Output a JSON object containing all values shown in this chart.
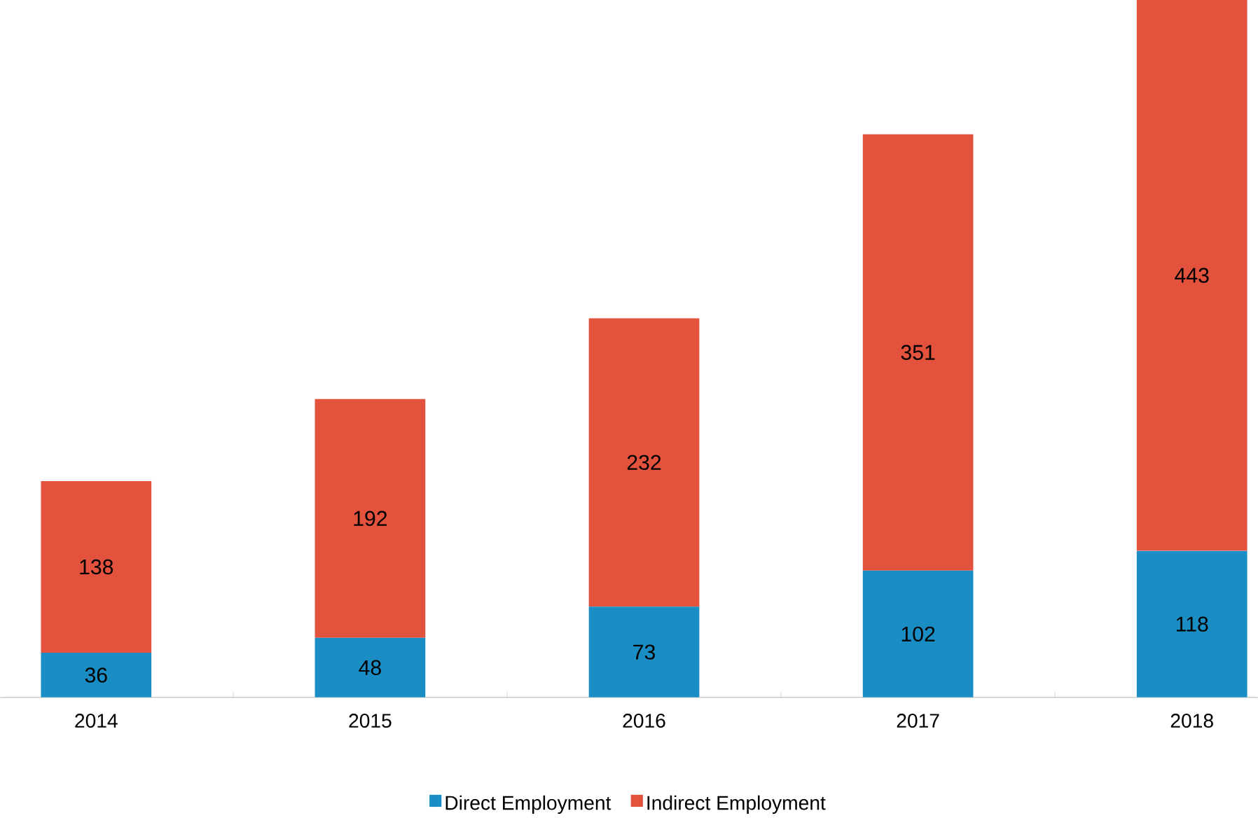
{
  "chart_data": {
    "type": "bar",
    "stacked": true,
    "categories": [
      "2014",
      "2015",
      "2016",
      "2017",
      "2018"
    ],
    "series": [
      {
        "name": "Direct Employment",
        "color": "#1a8ec4",
        "values": [
          36,
          48,
          73,
          102,
          118
        ]
      },
      {
        "name": "Indirect Employment",
        "color": "#e2523c",
        "values": [
          138,
          192,
          232,
          351,
          443
        ]
      }
    ],
    "data_labels": true,
    "legend": "bottom"
  }
}
